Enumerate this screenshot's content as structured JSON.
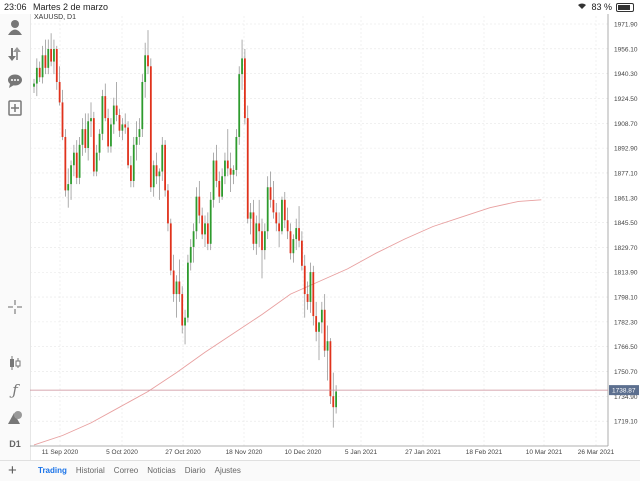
{
  "status_bar": {
    "time": "23:06",
    "date": "Martes 2 de marzo",
    "battery": "83 %",
    "battery_level": 0.83
  },
  "chart_header": {
    "symbol": "XAUUSD, D1"
  },
  "sidebar": {
    "items": [
      {
        "icon": "account-icon"
      },
      {
        "icon": "trade-arrows-icon"
      },
      {
        "icon": "chat-icon"
      },
      {
        "icon": "new-order-icon"
      },
      {
        "icon": "crosshair-icon"
      },
      {
        "icon": "candles-icon"
      },
      {
        "icon": "indicator-icon"
      },
      {
        "icon": "objects-icon"
      },
      {
        "icon": "timeframe-icon",
        "label": "D1"
      }
    ]
  },
  "bottom_nav": {
    "add_icon": "plus-icon",
    "tabs": [
      {
        "label": "Trading",
        "active": true
      },
      {
        "label": "Historial",
        "active": false
      },
      {
        "label": "Correo",
        "active": false
      },
      {
        "label": "Noticias",
        "active": false
      },
      {
        "label": "Diario",
        "active": false
      },
      {
        "label": "Ajustes",
        "active": false
      }
    ]
  },
  "colors": {
    "bull": "#2e9b2e",
    "bear": "#e0321c",
    "wick": "#8a8a8a",
    "grid": "#e6e6e6",
    "ma": "#e8a0a0",
    "price_line": "#c98a96",
    "active_tab": "#1a73e8"
  },
  "chart_data": {
    "type": "candlestick",
    "price_axis": {
      "ticks": [
        "1971.90",
        "1956.10",
        "1940.30",
        "1924.50",
        "1908.70",
        "1892.90",
        "1877.10",
        "1861.30",
        "1845.50",
        "1829.70",
        "1813.90",
        "1798.10",
        "1782.30",
        "1766.50",
        "1750.70",
        "1734.90",
        "1719.10"
      ],
      "range": [
        1703.3,
        1977.0
      ]
    },
    "time_axis": {
      "ticks": [
        "11 Sep 2020",
        "5 Oct 2020",
        "27 Oct 2020",
        "18 Nov 2020",
        "10 Dec 2020",
        "5 Jan 2021",
        "27 Jan 2021",
        "18 Feb 2021",
        "10 Mar 2021",
        "26 Mar 2021"
      ]
    },
    "current_price": "1738.87",
    "moving_average": [
      [
        0,
        1704
      ],
      [
        10,
        1710
      ],
      [
        20,
        1718
      ],
      [
        30,
        1728
      ],
      [
        40,
        1738
      ],
      [
        50,
        1750
      ],
      [
        60,
        1763
      ],
      [
        70,
        1775
      ],
      [
        80,
        1787
      ],
      [
        90,
        1800
      ],
      [
        100,
        1808
      ],
      [
        110,
        1816
      ],
      [
        120,
        1826
      ],
      [
        130,
        1835
      ],
      [
        140,
        1843
      ],
      [
        150,
        1849
      ],
      [
        160,
        1855
      ],
      [
        170,
        1859
      ],
      [
        178,
        1860
      ]
    ],
    "candles": [
      [
        1932,
        1937,
        1928,
        1934
      ],
      [
        1934,
        1950,
        1926,
        1944
      ],
      [
        1944,
        1948,
        1935,
        1938
      ],
      [
        1938,
        1958,
        1934,
        1952
      ],
      [
        1952,
        1962,
        1940,
        1944
      ],
      [
        1944,
        1962,
        1940,
        1956
      ],
      [
        1956,
        1966,
        1945,
        1948
      ],
      [
        1948,
        1962,
        1940,
        1956
      ],
      [
        1956,
        1958,
        1930,
        1935
      ],
      [
        1935,
        1945,
        1920,
        1922
      ],
      [
        1922,
        1930,
        1898,
        1900
      ],
      [
        1900,
        1905,
        1862,
        1866
      ],
      [
        1866,
        1880,
        1855,
        1870
      ],
      [
        1870,
        1885,
        1860,
        1882
      ],
      [
        1882,
        1895,
        1875,
        1890
      ],
      [
        1890,
        1898,
        1870,
        1874
      ],
      [
        1874,
        1900,
        1870,
        1895
      ],
      [
        1895,
        1912,
        1888,
        1905
      ],
      [
        1905,
        1915,
        1890,
        1893
      ],
      [
        1893,
        1915,
        1885,
        1910
      ],
      [
        1910,
        1922,
        1900,
        1912
      ],
      [
        1912,
        1916,
        1875,
        1878
      ],
      [
        1878,
        1895,
        1875,
        1890
      ],
      [
        1890,
        1905,
        1885,
        1902
      ],
      [
        1902,
        1930,
        1898,
        1926
      ],
      [
        1926,
        1934,
        1910,
        1912
      ],
      [
        1912,
        1918,
        1890,
        1894
      ],
      [
        1894,
        1912,
        1890,
        1908
      ],
      [
        1908,
        1925,
        1902,
        1920
      ],
      [
        1920,
        1935,
        1910,
        1914
      ],
      [
        1914,
        1918,
        1900,
        1904
      ],
      [
        1904,
        1912,
        1898,
        1908
      ],
      [
        1908,
        1915,
        1902,
        1906
      ],
      [
        1906,
        1910,
        1880,
        1882
      ],
      [
        1882,
        1888,
        1868,
        1872
      ],
      [
        1872,
        1900,
        1868,
        1895
      ],
      [
        1895,
        1910,
        1885,
        1900
      ],
      [
        1900,
        1912,
        1895,
        1905
      ],
      [
        1905,
        1940,
        1900,
        1935
      ],
      [
        1935,
        1960,
        1925,
        1952
      ],
      [
        1952,
        1968,
        1940,
        1945
      ],
      [
        1945,
        1950,
        1865,
        1868
      ],
      [
        1868,
        1885,
        1862,
        1882
      ],
      [
        1882,
        1890,
        1870,
        1875
      ],
      [
        1875,
        1880,
        1860,
        1878
      ],
      [
        1878,
        1900,
        1872,
        1895
      ],
      [
        1895,
        1898,
        1862,
        1866
      ],
      [
        1866,
        1870,
        1840,
        1845
      ],
      [
        1845,
        1848,
        1812,
        1815
      ],
      [
        1815,
        1825,
        1795,
        1800
      ],
      [
        1800,
        1812,
        1785,
        1808
      ],
      [
        1808,
        1822,
        1795,
        1800
      ],
      [
        1800,
        1805,
        1775,
        1780
      ],
      [
        1780,
        1790,
        1768,
        1785
      ],
      [
        1785,
        1825,
        1782,
        1820
      ],
      [
        1820,
        1835,
        1815,
        1830
      ],
      [
        1830,
        1845,
        1820,
        1840
      ],
      [
        1840,
        1868,
        1835,
        1862
      ],
      [
        1862,
        1872,
        1845,
        1850
      ],
      [
        1850,
        1855,
        1835,
        1838
      ],
      [
        1838,
        1850,
        1830,
        1845
      ],
      [
        1845,
        1852,
        1828,
        1832
      ],
      [
        1832,
        1865,
        1828,
        1860
      ],
      [
        1860,
        1890,
        1855,
        1885
      ],
      [
        1885,
        1895,
        1868,
        1872
      ],
      [
        1872,
        1878,
        1858,
        1862
      ],
      [
        1862,
        1880,
        1860,
        1875
      ],
      [
        1875,
        1890,
        1870,
        1885
      ],
      [
        1885,
        1905,
        1875,
        1880
      ],
      [
        1880,
        1890,
        1865,
        1876
      ],
      [
        1876,
        1882,
        1870,
        1879
      ],
      [
        1879,
        1905,
        1875,
        1900
      ],
      [
        1900,
        1945,
        1895,
        1940
      ],
      [
        1940,
        1962,
        1930,
        1950
      ],
      [
        1950,
        1956,
        1908,
        1912
      ],
      [
        1912,
        1920,
        1845,
        1848
      ],
      [
        1848,
        1858,
        1838,
        1852
      ],
      [
        1852,
        1860,
        1828,
        1832
      ],
      [
        1832,
        1850,
        1825,
        1845
      ],
      [
        1845,
        1860,
        1830,
        1840
      ],
      [
        1840,
        1848,
        1810,
        1828
      ],
      [
        1828,
        1845,
        1822,
        1840
      ],
      [
        1840,
        1875,
        1835,
        1868
      ],
      [
        1868,
        1878,
        1855,
        1860
      ],
      [
        1860,
        1872,
        1848,
        1852
      ],
      [
        1852,
        1858,
        1840,
        1845
      ],
      [
        1845,
        1852,
        1830,
        1840
      ],
      [
        1840,
        1862,
        1838,
        1860
      ],
      [
        1860,
        1865,
        1842,
        1847
      ],
      [
        1847,
        1855,
        1835,
        1840
      ],
      [
        1840,
        1845,
        1822,
        1826
      ],
      [
        1826,
        1838,
        1820,
        1835
      ],
      [
        1835,
        1848,
        1828,
        1842
      ],
      [
        1842,
        1856,
        1830,
        1834
      ],
      [
        1834,
        1840,
        1815,
        1818
      ],
      [
        1818,
        1825,
        1785,
        1800
      ],
      [
        1800,
        1808,
        1790,
        1795
      ],
      [
        1795,
        1820,
        1788,
        1814
      ],
      [
        1814,
        1818,
        1780,
        1786
      ],
      [
        1786,
        1795,
        1770,
        1776
      ],
      [
        1776,
        1782,
        1758,
        1782
      ],
      [
        1782,
        1795,
        1775,
        1790
      ],
      [
        1790,
        1800,
        1760,
        1764
      ],
      [
        1764,
        1780,
        1745,
        1770
      ],
      [
        1770,
        1772,
        1730,
        1735
      ],
      [
        1735,
        1750,
        1715,
        1728
      ],
      [
        1728,
        1742,
        1724,
        1738
      ]
    ]
  }
}
